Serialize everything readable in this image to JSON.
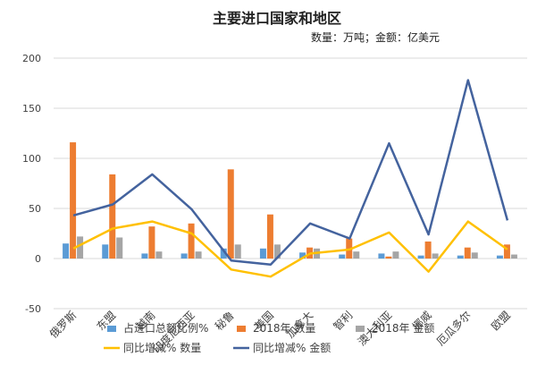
{
  "chart_data": {
    "type": "bar",
    "title": "主要进口国家和地区",
    "subtitle": "数量：万吨；金额：亿美元",
    "categories": [
      "俄罗斯",
      "东盟",
      "越南",
      "印度尼西亚",
      "秘鲁",
      "美国",
      "加拿大",
      "智利",
      "澳大利亚",
      "挪威",
      "厄瓜多尔",
      "欧盟"
    ],
    "ylim": [
      -50,
      200
    ],
    "yticks": [
      "-50",
      "0",
      "50",
      "100",
      "150",
      "200"
    ],
    "grid": true,
    "legend_position": "bottom",
    "series": [
      {
        "name": "占进口总额比例%",
        "kind": "bar",
        "color": "#5B9BD5",
        "values": [
          15,
          14,
          5,
          5,
          10,
          10,
          6,
          4,
          5,
          3,
          3,
          3
        ]
      },
      {
        "name": "2018年 数量",
        "kind": "bar",
        "color": "#ED7D31",
        "values": [
          116,
          84,
          32,
          35,
          89,
          44,
          11,
          20,
          2,
          17,
          11,
          14
        ]
      },
      {
        "name": "2018年 金额",
        "kind": "bar",
        "color": "#A5A5A5",
        "values": [
          22,
          21,
          7,
          7,
          14,
          14,
          10,
          7,
          7,
          5,
          6,
          4
        ]
      },
      {
        "name": "同比增减% 数量",
        "kind": "line",
        "color": "#FFC000",
        "values": [
          10,
          30,
          37,
          25,
          -11,
          -18,
          5,
          9,
          26,
          -13,
          37,
          9
        ]
      },
      {
        "name": "同比增减% 金额",
        "kind": "line",
        "color": "#44639E",
        "values": [
          43,
          54,
          84,
          49,
          -2,
          -6,
          35,
          20,
          115,
          24,
          178,
          38
        ]
      }
    ]
  }
}
